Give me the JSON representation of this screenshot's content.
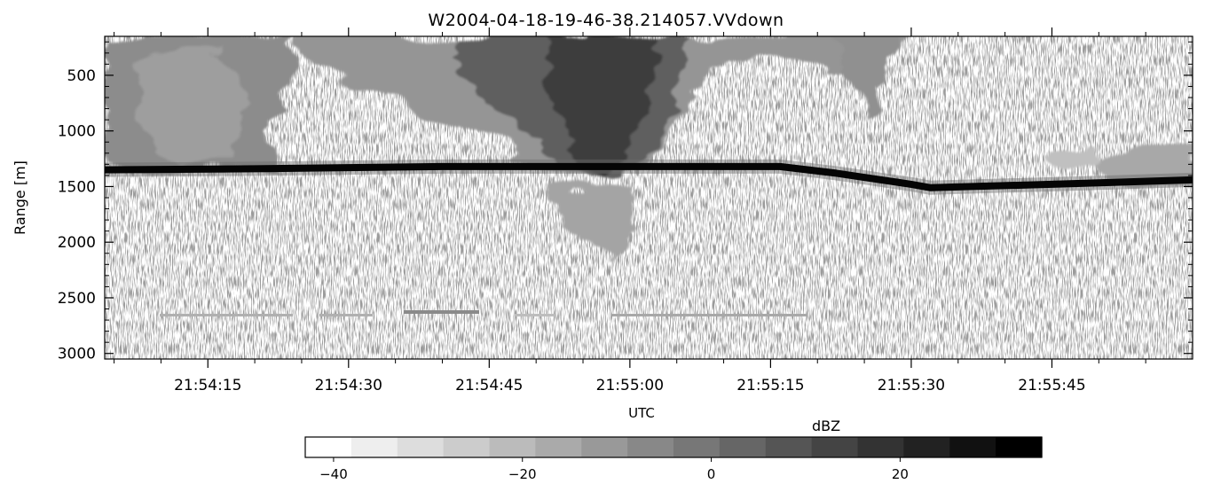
{
  "chart_data": {
    "type": "heatmap",
    "title": "W2004-04-18-19-46-38.214057.VVdown",
    "xlabel": "UTC",
    "ylabel": "Range [m]",
    "x_range": [
      "21:54:04",
      "21:56:00"
    ],
    "x_ticks": [
      "21:54:15",
      "21:54:30",
      "21:54:45",
      "21:55:00",
      "21:55:15",
      "21:55:30",
      "21:55:45"
    ],
    "y_range": [
      150,
      3050
    ],
    "y_inverted": true,
    "y_ticks": [
      500,
      1000,
      1500,
      2000,
      2500,
      3000
    ],
    "colorbar": {
      "label": "dBZ",
      "min": -43,
      "max": 35,
      "levels": 16,
      "ticks": [
        -40,
        -20,
        0,
        20
      ],
      "colormap": "white-to-black"
    },
    "surface_echo_range": {
      "times": [
        "21:54:04",
        "21:54:20",
        "21:54:40",
        "21:55:00",
        "21:55:16",
        "21:55:22",
        "21:55:30",
        "21:55:32",
        "21:55:45",
        "21:56:00"
      ],
      "range_m": [
        1350,
        1340,
        1320,
        1320,
        1320,
        1380,
        1480,
        1510,
        1480,
        1440
      ]
    },
    "grid": false,
    "legend": "none"
  }
}
